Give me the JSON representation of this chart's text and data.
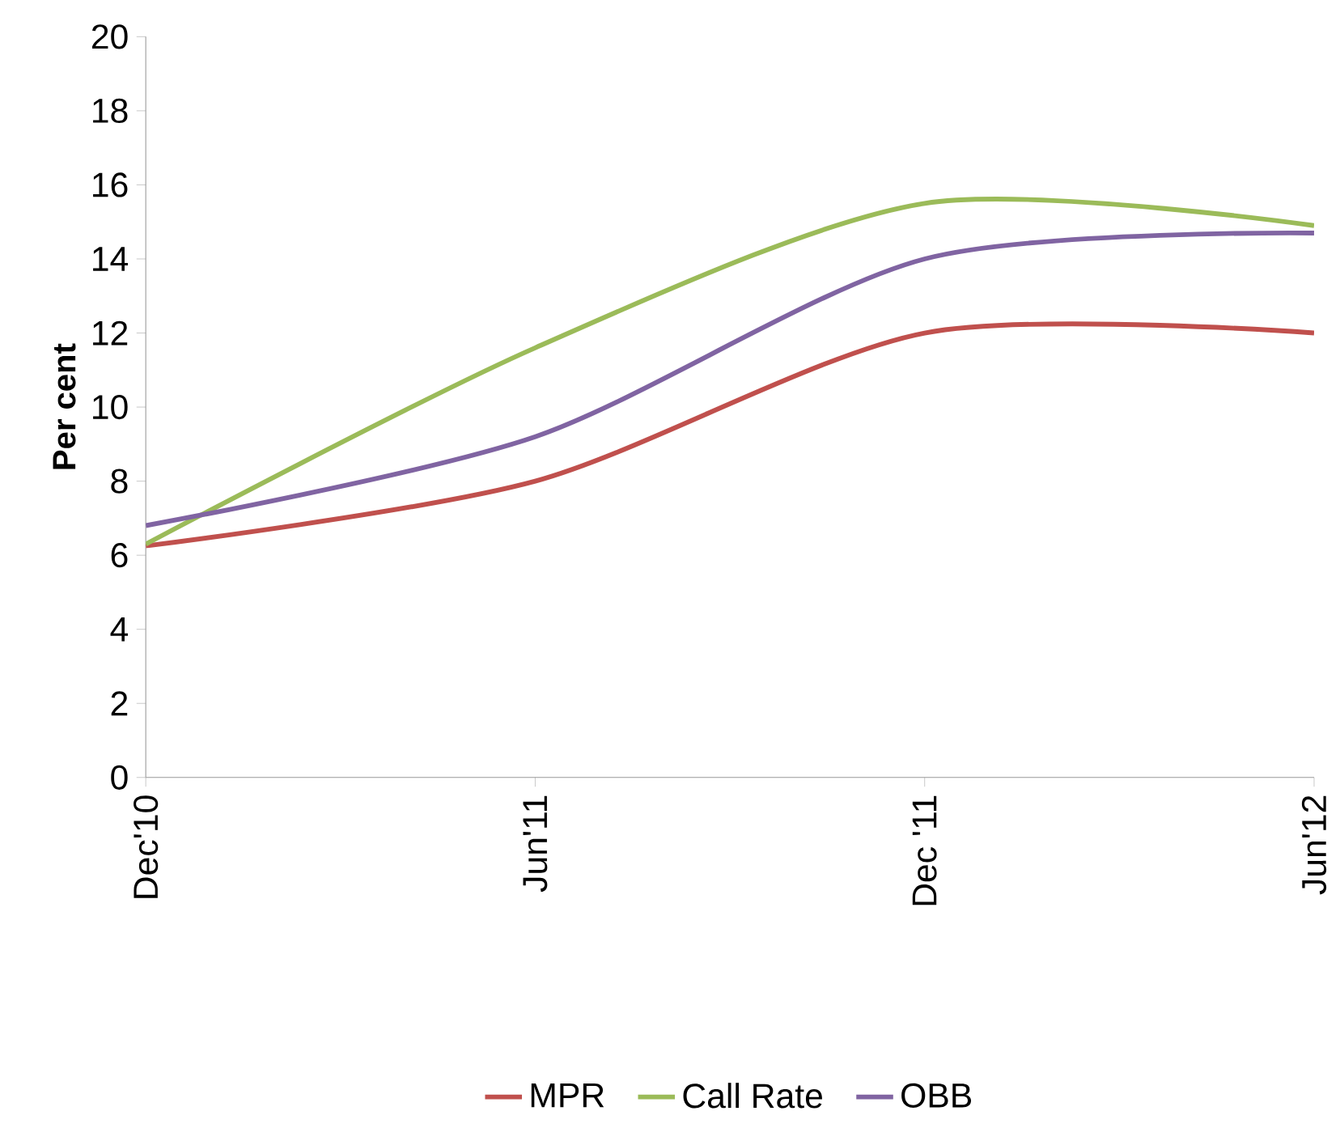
{
  "chart_data": {
    "type": "line",
    "ylabel": "Per cent",
    "categories": [
      "Dec'10",
      "Jun'11",
      "Dec '11",
      "Jun'12"
    ],
    "series": [
      {
        "name": "MPR",
        "color": "#c0504d",
        "values": [
          6.25,
          8,
          12,
          12
        ]
      },
      {
        "name": "Call Rate",
        "color": "#9bbb59",
        "values": [
          6.3,
          11.6,
          15.5,
          14.9
        ]
      },
      {
        "name": "OBB",
        "color": "#8064a2",
        "values": [
          6.8,
          9.2,
          14.0,
          14.7
        ]
      }
    ],
    "ylim": [
      0,
      20
    ],
    "yticks": [
      0,
      2,
      4,
      6,
      8,
      10,
      12,
      14,
      16,
      18,
      20
    ],
    "legend": "bottom",
    "grid": false
  }
}
